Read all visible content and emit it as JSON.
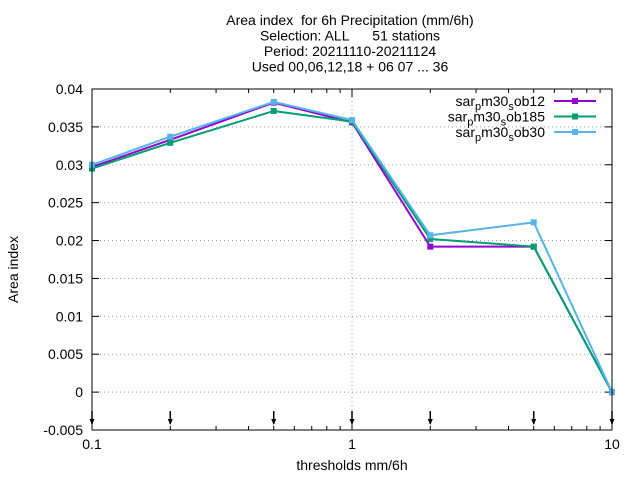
{
  "chart_data": {
    "type": "line",
    "title_lines": [
      "Area index  for 6h Precipitation (mm/6h)",
      "Selection: ALL      51 stations",
      "Period: 20211110-20211124",
      "Used 00,06,12,18 + 06 07 ... 36"
    ],
    "xlabel": "thresholds mm/6h",
    "ylabel": "Area index",
    "x_scale": "log",
    "xlim": [
      0.1,
      10
    ],
    "ylim": [
      -0.005,
      0.04
    ],
    "x_ticks": [
      0.1,
      1,
      10
    ],
    "x_tick_labels": [
      "0.1",
      "1",
      "10"
    ],
    "y_ticks": [
      -0.005,
      0,
      0.005,
      0.01,
      0.015,
      0.02,
      0.025,
      0.03,
      0.035,
      0.04
    ],
    "y_tick_labels": [
      "-0.005",
      "0",
      "0.005",
      "0.01",
      "0.015",
      "0.02",
      "0.025",
      "0.03",
      "0.035",
      "0.04"
    ],
    "grid": true,
    "legend_position": "top-right",
    "x": [
      0.1,
      0.2,
      0.5,
      1,
      2,
      5,
      10
    ],
    "series": [
      {
        "name": "sar_pm30_sob12",
        "legend_base": "sar",
        "legend_sub": "p",
        "legend_mid": "m30",
        "legend_sub2": "s",
        "legend_end": "ob12",
        "color": "#9400d3",
        "values": [
          0.0297,
          0.0333,
          0.0382,
          0.0356,
          0.0192,
          0.0192,
          0.0
        ]
      },
      {
        "name": "sar_pm30_sob185",
        "legend_base": "sar",
        "legend_sub": "p",
        "legend_mid": "m30",
        "legend_sub2": "s",
        "legend_end": "ob185",
        "color": "#009e73",
        "values": [
          0.0295,
          0.0329,
          0.0371,
          0.0357,
          0.0202,
          0.0192,
          0.0
        ]
      },
      {
        "name": "sar_pm30_sob30",
        "legend_base": "sar",
        "legend_sub": "p",
        "legend_mid": "m30",
        "legend_sub2": "s",
        "legend_end": "ob30",
        "color": "#56b4e9",
        "values": [
          0.03,
          0.0337,
          0.0383,
          0.0359,
          0.0207,
          0.0224,
          0.0
        ]
      }
    ],
    "bottom_tick_markers_x": [
      0.1,
      0.2,
      0.5,
      1,
      2,
      5,
      10
    ]
  }
}
